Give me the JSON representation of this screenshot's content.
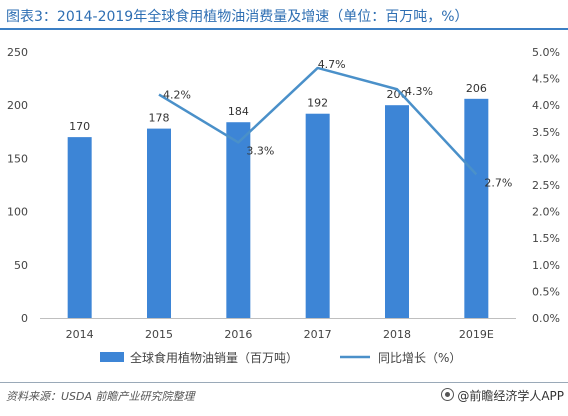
{
  "title": "图表3：2014-2019年全球食用植物油消费量及增速（单位：百万吨，%）",
  "source": "资料来源：USDA 前瞻产业研究院整理",
  "brand": "@前瞻经济学人APP",
  "colors": {
    "bar": "#3d85d6",
    "line": "#4a90c9",
    "title": "#2f6fb3"
  },
  "chart_data": {
    "type": "bar",
    "categories": [
      "2014",
      "2015",
      "2016",
      "2017",
      "2018",
      "2019E"
    ],
    "series": [
      {
        "name": "全球食用植物油销量（百万吨）",
        "type": "bar",
        "axis": "left",
        "values": [
          170,
          178,
          184,
          192,
          200,
          206
        ],
        "labels": [
          "170",
          "178",
          "184",
          "192",
          "200",
          "206"
        ]
      },
      {
        "name": "同比增长（%）",
        "type": "line",
        "axis": "right",
        "values": [
          null,
          4.2,
          3.3,
          4.7,
          4.3,
          2.7
        ],
        "labels": [
          "",
          "4.2%",
          "3.3%",
          "4.7%",
          "4.3%",
          "2.7%"
        ]
      }
    ],
    "y_left": {
      "min": 0,
      "max": 250,
      "ticks": [
        "0",
        "50",
        "100",
        "150",
        "200",
        "250"
      ]
    },
    "y_right": {
      "min": 0,
      "max": 5,
      "ticks": [
        "0.0%",
        "0.5%",
        "1.0%",
        "1.5%",
        "2.0%",
        "2.5%",
        "3.0%",
        "3.5%",
        "4.0%",
        "4.5%",
        "5.0%"
      ]
    },
    "grid": false,
    "legend_position": "bottom"
  }
}
